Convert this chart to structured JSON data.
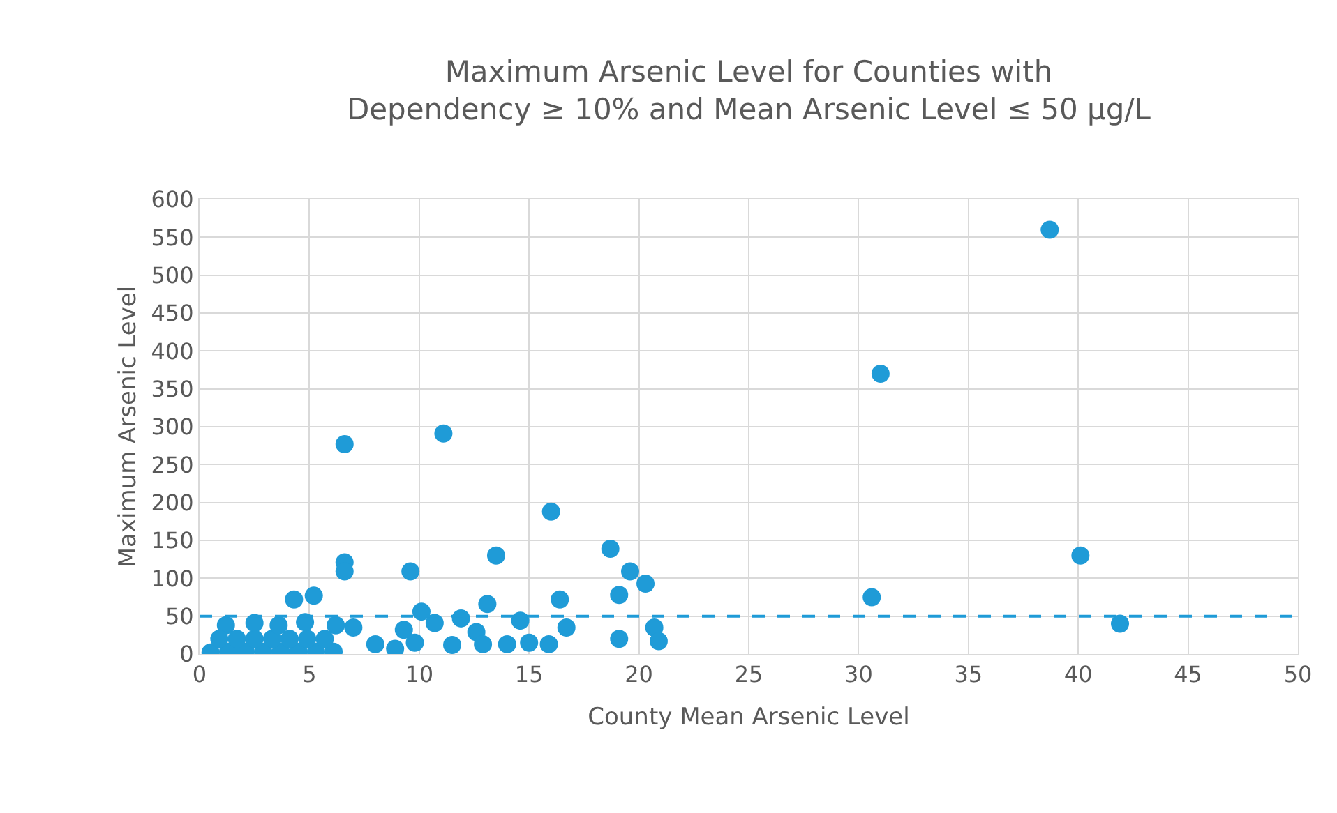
{
  "chart_data": {
    "type": "scatter",
    "title": "Maximum Arsenic Level for Counties with\nDependency ≥ 10% and Mean Arsenic Level ≤ 50 µg/L",
    "xlabel": "County Mean Arsenic Level",
    "ylabel": "Maximum Arsenic Level",
    "xlim": [
      0,
      50
    ],
    "xticks": [
      0,
      5,
      10,
      15,
      20,
      25,
      30,
      35,
      40,
      45,
      50
    ],
    "ylim": [
      0,
      600
    ],
    "yticks": [
      0,
      50,
      100,
      150,
      200,
      250,
      300,
      350,
      400,
      450,
      500,
      550,
      600
    ],
    "grid": true,
    "marker": "circle",
    "series": [
      {
        "color": "#1f9bd7",
        "x": [
          38.7,
          31.0,
          40.1,
          30.6,
          41.9,
          6.6,
          11.1,
          16.0,
          13.5,
          18.7,
          19.6,
          20.3,
          9.6,
          6.6,
          6.6,
          4.3,
          5.2,
          13.1,
          16.4,
          19.1,
          19.1,
          16.7,
          10.1,
          14.6,
          11.9,
          9.3,
          14.0,
          15.0,
          15.9,
          20.7,
          20.9,
          12.6,
          12.9,
          10.7,
          8.0,
          8.9,
          1.2,
          6.2,
          7.0,
          0.5,
          1.3,
          2.1,
          2.9,
          3.7,
          4.5,
          5.3,
          6.1,
          0.9,
          1.7,
          2.5,
          3.3,
          4.1,
          4.9,
          5.7,
          2.5,
          3.6,
          4.8,
          9.8,
          11.5
        ],
        "values": [
          560,
          370,
          130,
          75,
          40,
          277,
          291,
          188,
          130,
          139,
          109,
          93,
          109,
          121,
          109,
          72,
          77,
          66,
          72,
          78,
          20,
          35,
          56,
          44,
          47,
          32,
          13,
          15,
          13,
          35,
          17,
          29,
          13,
          41,
          13,
          7,
          38,
          38,
          35,
          2,
          3,
          3,
          3,
          3,
          3,
          3,
          3,
          20,
          20,
          20,
          20,
          20,
          20,
          20,
          41,
          38,
          42,
          15,
          12
        ]
      }
    ],
    "ref_lines": [
      {
        "axis": "y",
        "value": 50,
        "color": "#1f9bd7",
        "line_style": "dashed"
      }
    ]
  }
}
